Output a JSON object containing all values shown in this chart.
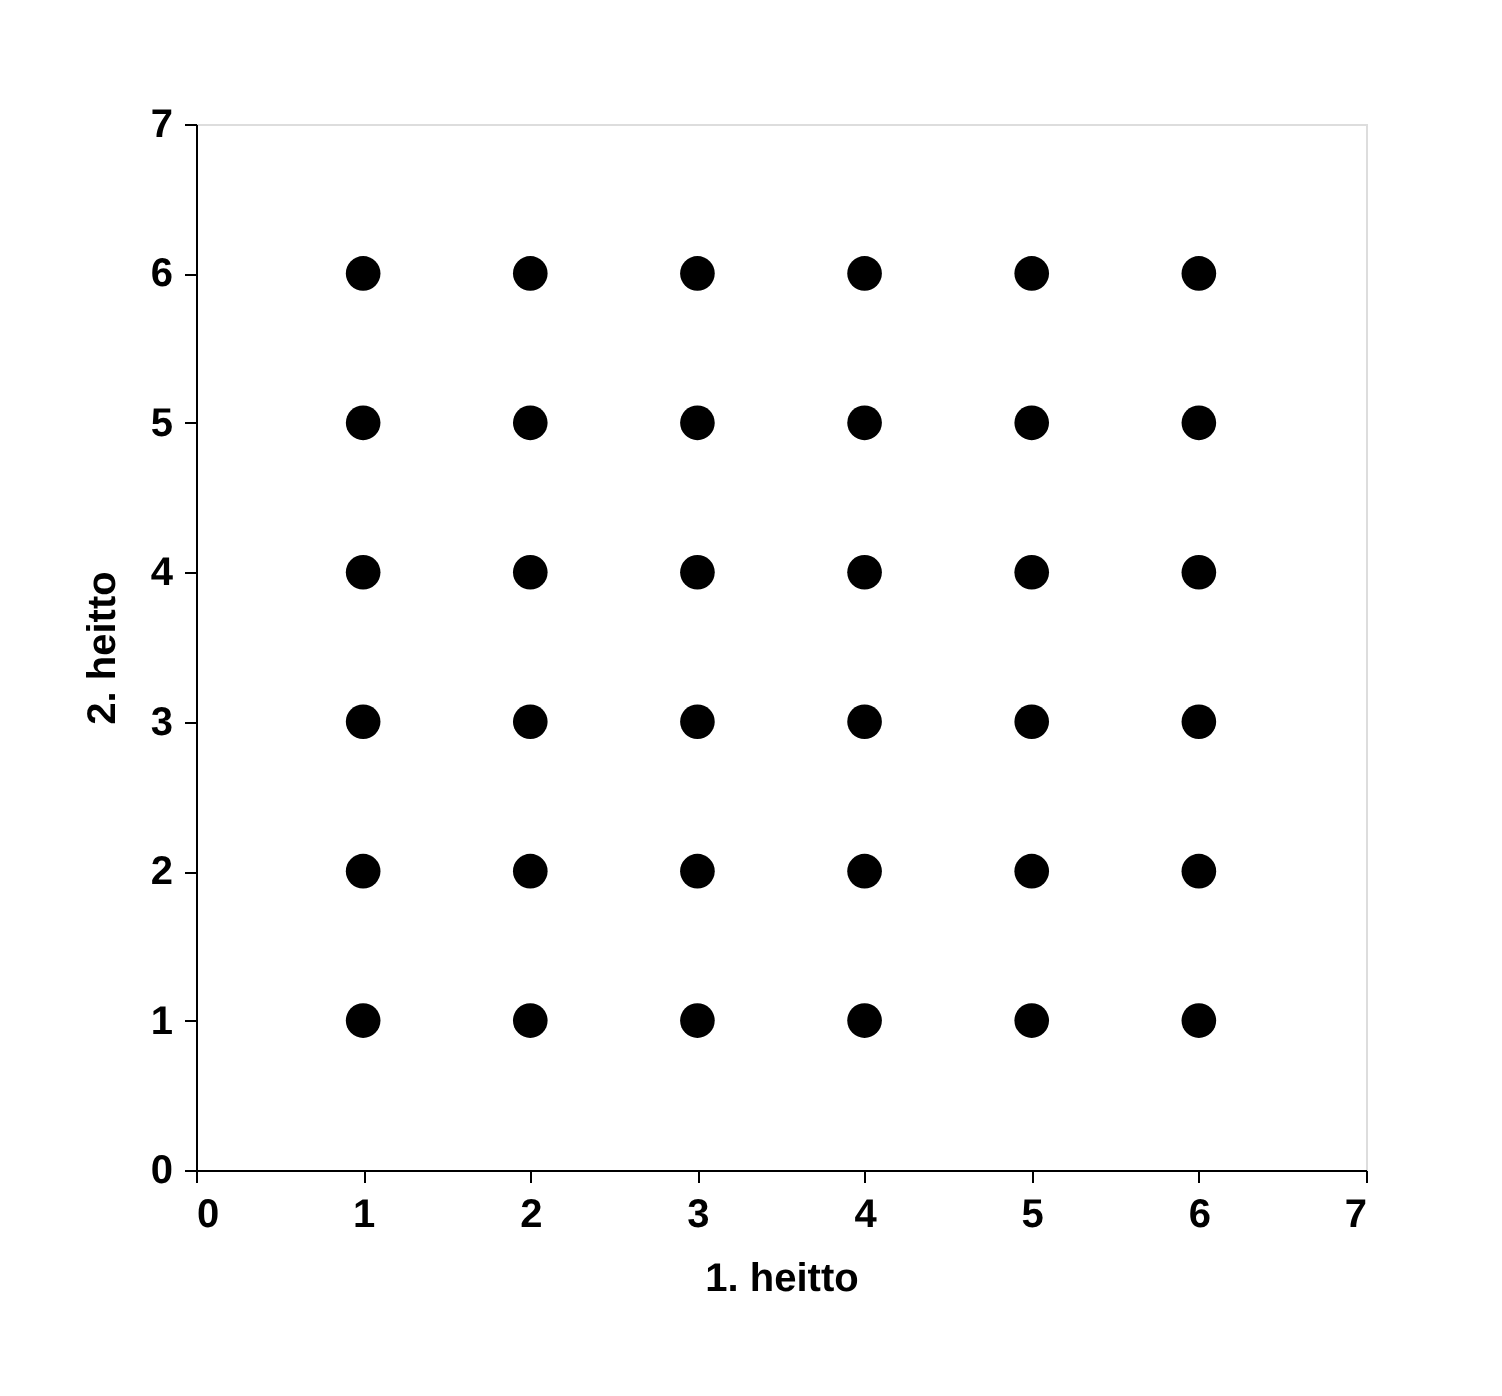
{
  "chart_data": {
    "type": "scatter",
    "xlabel": "1. heitto",
    "ylabel": "2. heitto",
    "xlim": [
      0,
      7
    ],
    "ylim": [
      0,
      7
    ],
    "xticks": [
      0,
      1,
      2,
      3,
      4,
      5,
      6,
      7
    ],
    "yticks": [
      0,
      1,
      2,
      3,
      4,
      5,
      6,
      7
    ],
    "grid": false,
    "legend": false,
    "marker": "circle",
    "series": [
      {
        "color": "#000000",
        "x": [
          1,
          2,
          3,
          4,
          5,
          6,
          1,
          2,
          3,
          4,
          5,
          6,
          1,
          2,
          3,
          4,
          5,
          6,
          1,
          2,
          3,
          4,
          5,
          6,
          1,
          2,
          3,
          4,
          5,
          6,
          1,
          2,
          3,
          4,
          5,
          6
        ],
        "values": [
          1,
          1,
          1,
          1,
          1,
          1,
          2,
          2,
          2,
          2,
          2,
          2,
          3,
          3,
          3,
          3,
          3,
          3,
          4,
          4,
          4,
          4,
          4,
          4,
          5,
          5,
          5,
          5,
          5,
          5,
          6,
          6,
          6,
          6,
          6,
          6
        ]
      }
    ]
  }
}
